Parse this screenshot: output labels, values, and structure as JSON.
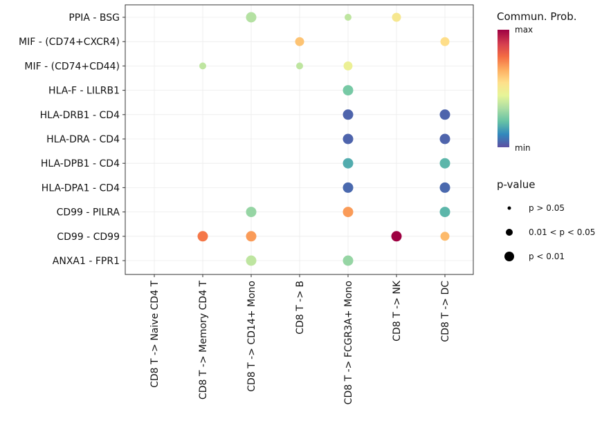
{
  "chart_data": {
    "type": "dot",
    "x_categories": [
      "CD8 T -> Naive CD4 T",
      "CD8 T -> Memory CD4 T",
      "CD8 T -> CD14+ Mono",
      "CD8 T -> B",
      "CD8 T -> FCGR3A+ Mono",
      "CD8 T -> NK",
      "CD8 T -> DC"
    ],
    "y_categories": [
      "PPIA - BSG",
      "MIF - (CD74+CXCR4)",
      "MIF - (CD74+CD44)",
      "HLA-F - LILRB1",
      "HLA-DRB1 - CD4",
      "HLA-DRA - CD4",
      "HLA-DPB1 - CD4",
      "HLA-DPA1 - CD4",
      "CD99 - PILRA",
      "CD99 - CD99",
      "ANXA1 - FPR1"
    ],
    "points": [
      {
        "x": "CD8 T -> CD14+ Mono",
        "y": "PPIA - BSG",
        "prob": 0.35,
        "pval": "p < 0.01"
      },
      {
        "x": "CD8 T -> FCGR3A+ Mono",
        "y": "PPIA - BSG",
        "prob": 0.37,
        "pval": "p > 0.05"
      },
      {
        "x": "CD8 T -> NK",
        "y": "PPIA - BSG",
        "prob": 0.52,
        "pval": "0.01 < p < 0.05"
      },
      {
        "x": "CD8 T -> B",
        "y": "MIF - (CD74+CXCR4)",
        "prob": 0.62,
        "pval": "0.01 < p < 0.05"
      },
      {
        "x": "CD8 T -> DC",
        "y": "MIF - (CD74+CXCR4)",
        "prob": 0.56,
        "pval": "0.01 < p < 0.05"
      },
      {
        "x": "CD8 T -> Memory CD4 T",
        "y": "MIF - (CD74+CD44)",
        "prob": 0.37,
        "pval": "p > 0.05"
      },
      {
        "x": "CD8 T -> B",
        "y": "MIF - (CD74+CD44)",
        "prob": 0.37,
        "pval": "p > 0.05"
      },
      {
        "x": "CD8 T -> FCGR3A+ Mono",
        "y": "MIF - (CD74+CD44)",
        "prob": 0.47,
        "pval": "0.01 < p < 0.05"
      },
      {
        "x": "CD8 T -> FCGR3A+ Mono",
        "y": "HLA-F - LILRB1",
        "prob": 0.25,
        "pval": "p < 0.01"
      },
      {
        "x": "CD8 T -> FCGR3A+ Mono",
        "y": "HLA-DRB1 - CD4",
        "prob": 0.04,
        "pval": "p < 0.01"
      },
      {
        "x": "CD8 T -> DC",
        "y": "HLA-DRB1 - CD4",
        "prob": 0.04,
        "pval": "p < 0.01"
      },
      {
        "x": "CD8 T -> FCGR3A+ Mono",
        "y": "HLA-DRA - CD4",
        "prob": 0.04,
        "pval": "p < 0.01"
      },
      {
        "x": "CD8 T -> DC",
        "y": "HLA-DRA - CD4",
        "prob": 0.04,
        "pval": "p < 0.01"
      },
      {
        "x": "CD8 T -> FCGR3A+ Mono",
        "y": "HLA-DPB1 - CD4",
        "prob": 0.18,
        "pval": "p < 0.01"
      },
      {
        "x": "CD8 T -> DC",
        "y": "HLA-DPB1 - CD4",
        "prob": 0.2,
        "pval": "p < 0.01"
      },
      {
        "x": "CD8 T -> FCGR3A+ Mono",
        "y": "HLA-DPA1 - CD4",
        "prob": 0.05,
        "pval": "p < 0.01"
      },
      {
        "x": "CD8 T -> DC",
        "y": "HLA-DPA1 - CD4",
        "prob": 0.05,
        "pval": "p < 0.01"
      },
      {
        "x": "CD8 T -> CD14+ Mono",
        "y": "CD99 - PILRA",
        "prob": 0.3,
        "pval": "p < 0.01"
      },
      {
        "x": "CD8 T -> FCGR3A+ Mono",
        "y": "CD99 - PILRA",
        "prob": 0.7,
        "pval": "p < 0.01"
      },
      {
        "x": "CD8 T -> DC",
        "y": "CD99 - PILRA",
        "prob": 0.2,
        "pval": "p < 0.01"
      },
      {
        "x": "CD8 T -> Memory CD4 T",
        "y": "CD99 - CD99",
        "prob": 0.76,
        "pval": "p < 0.01"
      },
      {
        "x": "CD8 T -> CD14+ Mono",
        "y": "CD99 - CD99",
        "prob": 0.7,
        "pval": "p < 0.01"
      },
      {
        "x": "CD8 T -> NK",
        "y": "CD99 - CD99",
        "prob": 1.0,
        "pval": "p < 0.01"
      },
      {
        "x": "CD8 T -> DC",
        "y": "CD99 - CD99",
        "prob": 0.64,
        "pval": "0.01 < p < 0.05"
      },
      {
        "x": "CD8 T -> CD14+ Mono",
        "y": "ANXA1 - FPR1",
        "prob": 0.37,
        "pval": "p < 0.01"
      },
      {
        "x": "CD8 T -> FCGR3A+ Mono",
        "y": "ANXA1 - FPR1",
        "prob": 0.3,
        "pval": "p < 0.01"
      }
    ],
    "color_legend": {
      "title": "Commun. Prob.",
      "max_label": "max",
      "min_label": "min",
      "palette": "Spectral (reversed)"
    },
    "size_legend": {
      "title": "p-value",
      "levels": [
        "p > 0.05",
        "0.01 < p < 0.05",
        "p < 0.01"
      ]
    },
    "grid": true,
    "colors": {
      "scale": [
        "#5e4fa2",
        "#3288bd",
        "#66c2a5",
        "#abdda4",
        "#e6f598",
        "#fee08b",
        "#fdae61",
        "#f46d43",
        "#d53e4f",
        "#9e0142"
      ],
      "panel_border": "#333333",
      "grid_line": "#ebebeb"
    }
  }
}
